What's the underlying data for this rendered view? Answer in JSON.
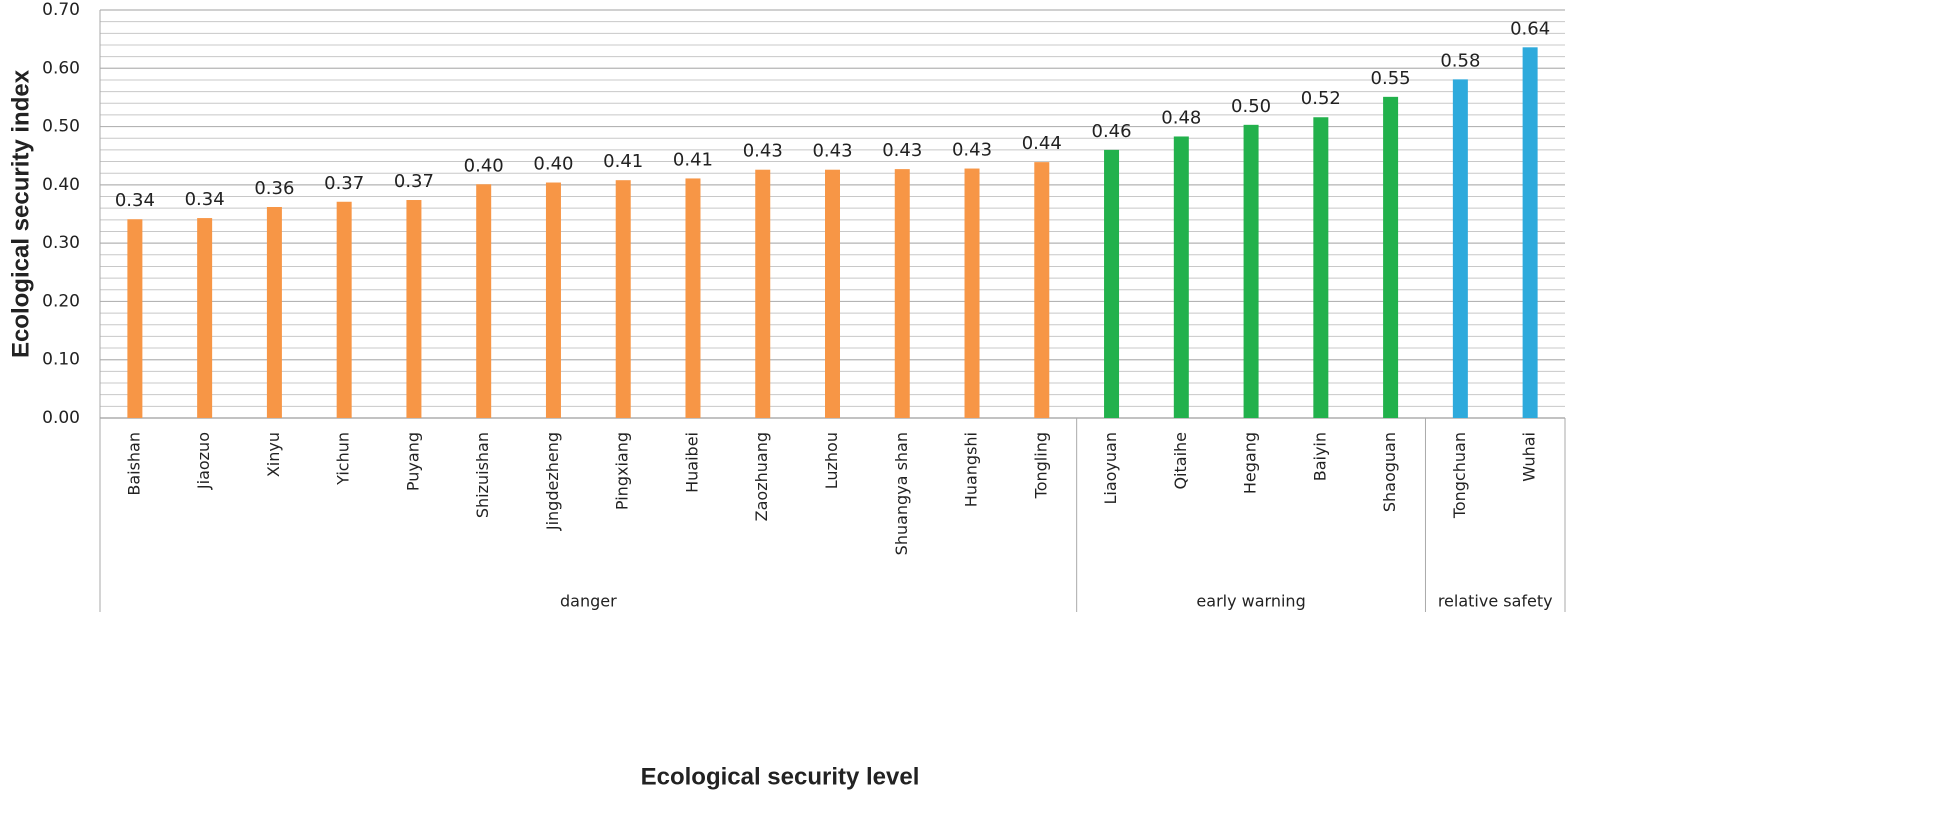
{
  "chart_data": {
    "type": "bar",
    "x_label": "Ecological security level",
    "y_label": "Ecological security index",
    "categories": [
      "Baishan",
      "Jiaozuo",
      "Xinyu",
      "Yichun",
      "Puyang",
      "Shizuishan",
      "Jingdezheng",
      "Pingxiang",
      "Huaibei",
      "Zaozhuang",
      "Luzhou",
      "Shuangya shan",
      "Huangshi",
      "Tongling",
      "Liaoyuan",
      "Qitaihe",
      "Hegang",
      "Baiyin",
      "Shaoguan",
      "Tongchuan",
      "Wuhai"
    ],
    "series": [
      {
        "name": "danger",
        "color": "#f79646",
        "values": [
          0.341,
          0.343,
          0.362,
          0.371,
          0.374,
          0.401,
          0.404,
          0.408,
          0.411,
          0.426,
          0.426,
          0.427,
          0.428,
          0.439,
          null,
          null,
          null,
          null,
          null,
          null,
          null
        ],
        "value_labels": [
          "0.34",
          "0.34",
          "0.36",
          "0.37",
          "0.37",
          "0.40",
          "0.40",
          "0.41",
          "0.41",
          "0.43",
          "0.43",
          "0.43",
          "0.43",
          "0.44",
          null,
          null,
          null,
          null,
          null,
          null,
          null
        ]
      },
      {
        "name": "early warning",
        "color": "#22b14c",
        "values": [
          null,
          null,
          null,
          null,
          null,
          null,
          null,
          null,
          null,
          null,
          null,
          null,
          null,
          null,
          0.46,
          0.483,
          0.503,
          0.516,
          0.551,
          null,
          null
        ],
        "value_labels": [
          null,
          null,
          null,
          null,
          null,
          null,
          null,
          null,
          null,
          null,
          null,
          null,
          null,
          null,
          "0.46",
          "0.48",
          "0.50",
          "0.52",
          "0.55",
          null,
          null
        ]
      },
      {
        "name": "relative safety",
        "color": "#2eaadc",
        "values": [
          null,
          null,
          null,
          null,
          null,
          null,
          null,
          null,
          null,
          null,
          null,
          null,
          null,
          null,
          null,
          null,
          null,
          null,
          null,
          0.581,
          0.636
        ],
        "value_labels": [
          null,
          null,
          null,
          null,
          null,
          null,
          null,
          null,
          null,
          null,
          null,
          null,
          null,
          null,
          null,
          null,
          null,
          null,
          null,
          "0.58",
          "0.64"
        ]
      }
    ],
    "ylim": [
      0,
      0.7
    ],
    "yticks": [
      {
        "value": 0,
        "label": "0.00"
      },
      {
        "value": 0.1,
        "label": "0.10"
      },
      {
        "value": 0.2,
        "label": "0.20"
      },
      {
        "value": 0.3,
        "label": "0.30"
      },
      {
        "value": 0.4,
        "label": "0.40"
      },
      {
        "value": 0.5,
        "label": "0.50"
      },
      {
        "value": 0.6,
        "label": "0.60"
      },
      {
        "value": 0.7,
        "label": "0.70"
      }
    ],
    "grid": true
  }
}
